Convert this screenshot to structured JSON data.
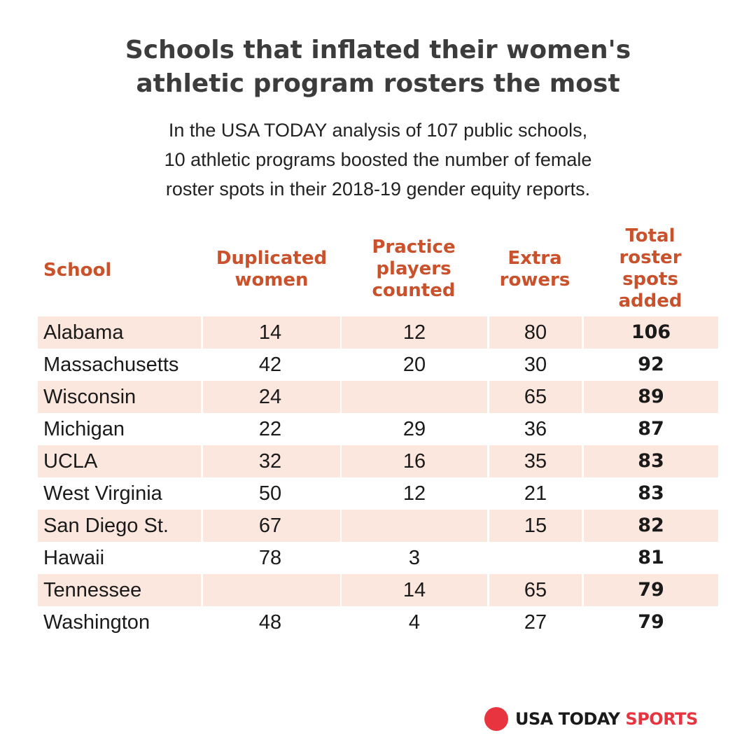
{
  "title_lines": [
    "Schools that inflated their women's",
    "athletic program rosters the most"
  ],
  "subtitle_lines": [
    "In the USA TODAY analysis of 107 public schools,",
    "10 athletic programs boosted the number of female",
    "roster spots in their 2018-19 gender equity reports."
  ],
  "colors": {
    "header": "#c9512b",
    "row_shade": "#fce7de",
    "brand_dot": "#e8343f",
    "title": "#3c3c3c"
  },
  "chart_data": {
    "type": "table",
    "title": "Schools that inflated their women's athletic program rosters the most",
    "columns": [
      {
        "key": "school",
        "label_lines": [
          "School"
        ]
      },
      {
        "key": "duplicated",
        "label_lines": [
          "Duplicated",
          "women"
        ]
      },
      {
        "key": "practice",
        "label_lines": [
          "Practice",
          "players",
          "counted"
        ]
      },
      {
        "key": "rowers",
        "label_lines": [
          "Extra",
          "rowers"
        ]
      },
      {
        "key": "total",
        "label_lines": [
          "Total",
          "roster",
          "spots",
          "added"
        ]
      }
    ],
    "rows": [
      {
        "school": "Alabama",
        "duplicated": "14",
        "practice": "12",
        "rowers": "80",
        "total": "106"
      },
      {
        "school": "Massachusetts",
        "duplicated": "42",
        "practice": "20",
        "rowers": "30",
        "total": "92"
      },
      {
        "school": "Wisconsin",
        "duplicated": "24",
        "practice": "",
        "rowers": "65",
        "total": "89"
      },
      {
        "school": "Michigan",
        "duplicated": "22",
        "practice": "29",
        "rowers": "36",
        "total": "87"
      },
      {
        "school": "UCLA",
        "duplicated": "32",
        "practice": "16",
        "rowers": "35",
        "total": "83"
      },
      {
        "school": "West Virginia",
        "duplicated": "50",
        "practice": "12",
        "rowers": "21",
        "total": "83"
      },
      {
        "school": "San Diego St.",
        "duplicated": "67",
        "practice": "",
        "rowers": "15",
        "total": "82"
      },
      {
        "school": "Hawaii",
        "duplicated": "78",
        "practice": "3",
        "rowers": "",
        "total": "81"
      },
      {
        "school": "Tennessee",
        "duplicated": "",
        "practice": "14",
        "rowers": "65",
        "total": "79"
      },
      {
        "school": "Washington",
        "duplicated": "48",
        "practice": "4",
        "rowers": "27",
        "total": "79"
      }
    ]
  },
  "logo": {
    "usa_today": "USA TODAY",
    "sports": "SPORTS"
  }
}
